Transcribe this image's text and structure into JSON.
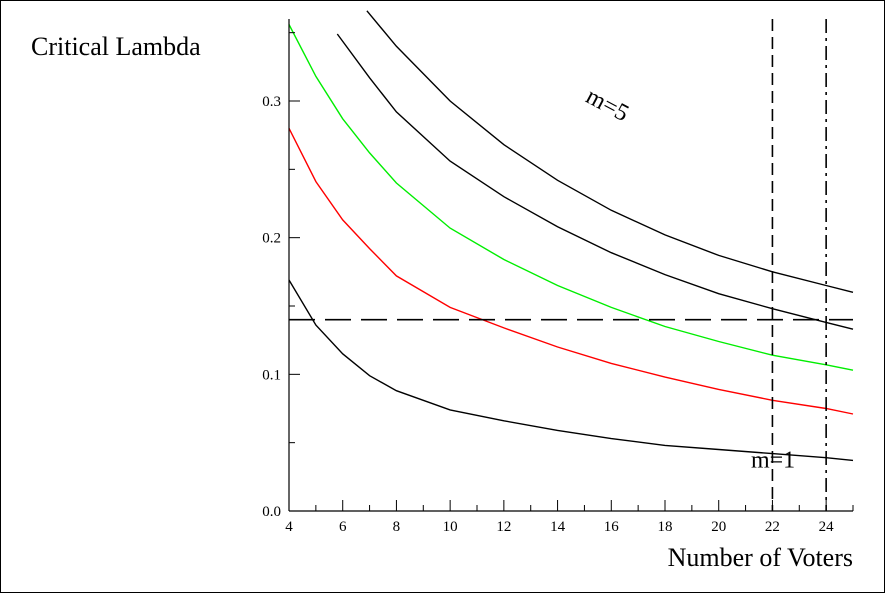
{
  "chart_data": {
    "type": "line",
    "title": "",
    "xlabel": "Number of Voters",
    "ylabel": "Critical Lambda",
    "xlim": [
      4,
      25
    ],
    "ylim": [
      0,
      0.36
    ],
    "x_ticks": [
      "4",
      "6",
      "8",
      "10",
      "12",
      "14",
      "16",
      "18",
      "20",
      "22",
      "24"
    ],
    "y_ticks": [
      "0.0",
      "0.1",
      "0.2",
      "0.3"
    ],
    "grid": false,
    "legend": "none",
    "annotations": [
      {
        "text": "m=5",
        "x": 15.0,
        "y": 0.3,
        "rotation": 28
      },
      {
        "text": "m=1",
        "x": 21.2,
        "y": 0.032,
        "rotation": 0
      }
    ],
    "series": [
      {
        "color": "#000000",
        "x": [
          4,
          5,
          6,
          7,
          8,
          10,
          12,
          14,
          16,
          18,
          20,
          22,
          24,
          25
        ],
        "y": [
          0.169,
          0.136,
          0.115,
          0.099,
          0.088,
          0.074,
          0.066,
          0.059,
          0.053,
          0.048,
          0.045,
          0.042,
          0.039,
          0.037
        ]
      },
      {
        "color": "#ff0000",
        "x": [
          4,
          5,
          6,
          7,
          8,
          10,
          12,
          14,
          16,
          18,
          20,
          22,
          24,
          25
        ],
        "y": [
          0.28,
          0.241,
          0.213,
          0.192,
          0.172,
          0.149,
          0.134,
          0.12,
          0.108,
          0.098,
          0.089,
          0.081,
          0.075,
          0.071
        ]
      },
      {
        "color": "#00ee00",
        "x": [
          4,
          5,
          6,
          7,
          8,
          10,
          12,
          14,
          16,
          18,
          20,
          22,
          24,
          25
        ],
        "y": [
          0.356,
          0.318,
          0.287,
          0.262,
          0.24,
          0.207,
          0.184,
          0.165,
          0.149,
          0.135,
          0.124,
          0.114,
          0.107,
          0.103
        ]
      },
      {
        "color": "#000000",
        "x": [
          5.8,
          7,
          8,
          10,
          12,
          14,
          16,
          18,
          20,
          22,
          24,
          25
        ],
        "y": [
          0.349,
          0.317,
          0.292,
          0.256,
          0.23,
          0.208,
          0.189,
          0.173,
          0.159,
          0.148,
          0.138,
          0.133
        ]
      },
      {
        "color": "#000000",
        "x": [
          6.9,
          8,
          10,
          12,
          14,
          16,
          18,
          20,
          22,
          24,
          25
        ],
        "y": [
          0.366,
          0.34,
          0.3,
          0.268,
          0.242,
          0.22,
          0.202,
          0.187,
          0.175,
          0.165,
          0.16
        ]
      }
    ],
    "reference_lines": [
      {
        "orientation": "horizontal",
        "value": 0.14,
        "color": "#000000",
        "style": "long-dash"
      },
      {
        "orientation": "vertical",
        "value": 22,
        "color": "#000000",
        "style": "dash"
      },
      {
        "orientation": "vertical",
        "value": 24,
        "color": "#000000",
        "style": "dash-dot"
      }
    ]
  }
}
